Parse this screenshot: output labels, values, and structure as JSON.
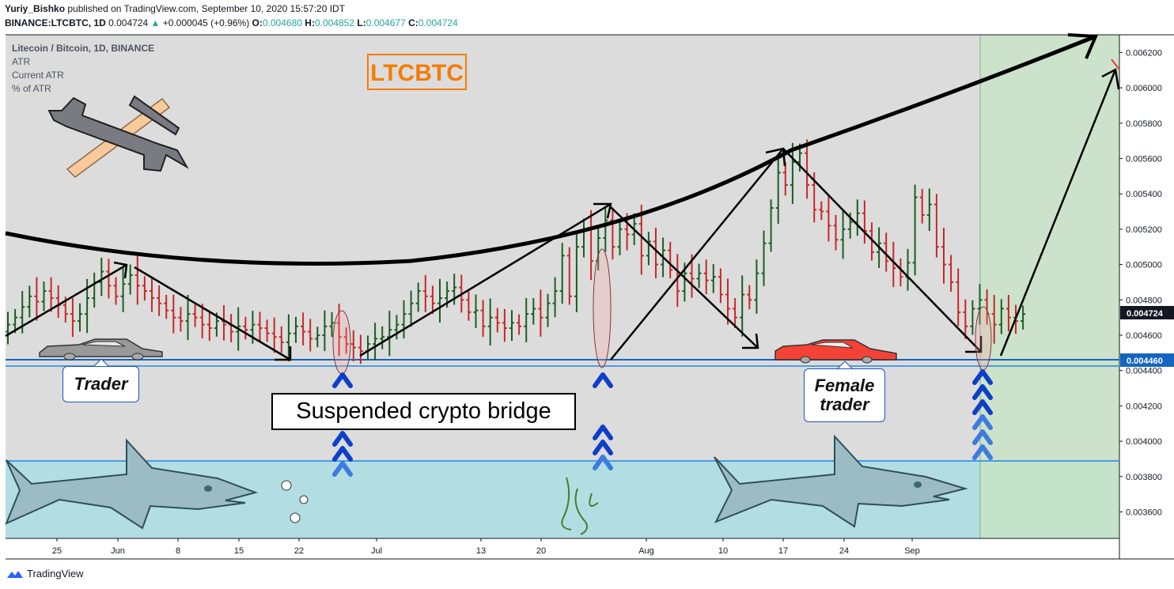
{
  "header": {
    "author": "Yuriy_Bishko",
    "published": "published on TradingView.com, September 10, 2020 15:57:20 IDT",
    "symbol": "BINANCE:LTCBTC, 1D",
    "last": "0.004724",
    "change": "+0.000045 (+0.96%)",
    "o_label": "O:",
    "o": "0.004680",
    "h_label": "H:",
    "h": "0.004852",
    "l_label": "L:",
    "l": "0.004677",
    "c_label": "C:",
    "c": "0.004724"
  },
  "legend": {
    "title": "Litecoin / Bitcoin, 1D, BINANCE",
    "items": [
      "ATR",
      "Current ATR",
      "% of ATR"
    ]
  },
  "annotations": {
    "ltcbtc": "LTCBTC",
    "trader": "Trader",
    "female_trader_1": "Female",
    "female_trader_2": "trader",
    "bridge": "Suspended crypto bridge"
  },
  "price_labels": {
    "last": "0.004724",
    "support": "0.004460"
  },
  "branding": "TradingView",
  "colors": {
    "up": "#1b5e20",
    "down": "#c62828",
    "support": "#1565c0",
    "water": "#b2dde2",
    "projection": "#d3e8cf",
    "plot_bg": "#dcdcdc",
    "accent": "#f57c00"
  },
  "chart_data": {
    "type": "candlestick",
    "title": "Litecoin / Bitcoin, 1D, BINANCE",
    "y_ticks": [
      "0.006200",
      "0.006000",
      "0.005800",
      "0.005600",
      "0.005400",
      "0.005200",
      "0.005000",
      "0.004800",
      "0.004600",
      "0.004400",
      "0.004200",
      "0.004000",
      "0.003800",
      "0.003600"
    ],
    "x_ticks": [
      "25",
      "Jun",
      "8",
      "15",
      "22",
      "Jul",
      "13",
      "20",
      "Aug",
      "10",
      "17",
      "24",
      "Sep"
    ],
    "ylim": [
      0.00345,
      0.0063
    ],
    "support_level": 0.00446,
    "water_level": 0.0039,
    "closes": [
      0.00466,
      0.0047,
      0.00476,
      0.00482,
      0.00479,
      0.00485,
      0.00481,
      0.00477,
      0.00472,
      0.00468,
      0.00472,
      0.00481,
      0.0049,
      0.00496,
      0.00488,
      0.00482,
      0.00489,
      0.00494,
      0.00488,
      0.00485,
      0.00481,
      0.00478,
      0.00474,
      0.0047,
      0.00468,
      0.00472,
      0.0047,
      0.00466,
      0.00464,
      0.00468,
      0.00466,
      0.00462,
      0.00465,
      0.00463,
      0.00466,
      0.00464,
      0.00461,
      0.00459,
      0.00456,
      0.00461,
      0.00465,
      0.00462,
      0.00458,
      0.0046,
      0.00465,
      0.00467,
      0.00459,
      0.00455,
      0.00453,
      0.00451,
      0.00455,
      0.00458,
      0.00459,
      0.00463,
      0.00466,
      0.00472,
      0.00478,
      0.00485,
      0.00482,
      0.00478,
      0.00481,
      0.00485,
      0.00487,
      0.0048,
      0.00473,
      0.00474,
      0.00465,
      0.0047,
      0.00467,
      0.00464,
      0.00467,
      0.00465,
      0.00472,
      0.00475,
      0.0047,
      0.00478,
      0.00485,
      0.00505,
      0.00482,
      0.0051,
      0.0052,
      0.00502,
      0.00515,
      0.00525,
      0.0051,
      0.0052,
      0.00517,
      0.00523,
      0.00505,
      0.00513,
      0.005,
      0.00508,
      0.00497,
      0.00485,
      0.00495,
      0.00492,
      0.00495,
      0.00491,
      0.00493,
      0.00483,
      0.00475,
      0.0047,
      0.00483,
      0.0048,
      0.00495,
      0.00512,
      0.00532,
      0.00552,
      0.00545,
      0.00558,
      0.00563,
      0.00545,
      0.00531,
      0.0053,
      0.00522,
      0.00514,
      0.0052,
      0.00524,
      0.00529,
      0.00519,
      0.00507,
      0.00512,
      0.00502,
      0.00498,
      0.00493,
      0.00501,
      0.00538,
      0.00528,
      0.00534,
      0.0051,
      0.005,
      0.0049,
      0.00473,
      0.00465,
      0.00475,
      0.0048,
      0.00472,
      0.00466,
      0.00475,
      0.0047,
      0.00468,
      0.00472
    ]
  }
}
